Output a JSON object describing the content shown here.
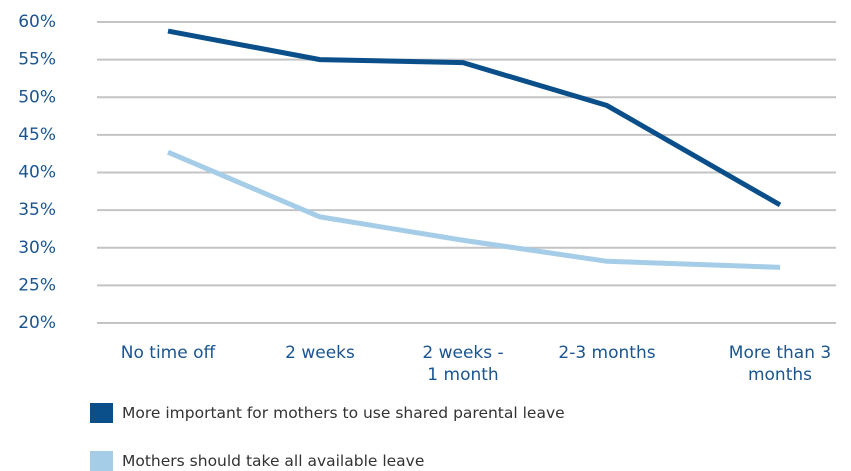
{
  "chart_data": {
    "type": "line",
    "categories": [
      "No time off",
      "2 weeks",
      "2 weeks - 1 month",
      "2-3 months",
      "More than 3 months"
    ],
    "series": [
      {
        "name": "More important for mothers to use shared parental leave",
        "color": "#0b4f8a",
        "values": [
          58.8,
          55,
          54.6,
          48.9,
          35.7
        ]
      },
      {
        "name": "Mothers should take all available leave",
        "color": "#a6cde8",
        "values": [
          42.7,
          34.1,
          31,
          28.2,
          27.4
        ]
      }
    ],
    "ylim": [
      20,
      60
    ],
    "yticks": [
      {
        "value": 20,
        "label": "20%"
      },
      {
        "value": 25,
        "label": "25%"
      },
      {
        "value": 30,
        "label": "30%"
      },
      {
        "value": 35,
        "label": "35%"
      },
      {
        "value": 40,
        "label": "40%"
      },
      {
        "value": 45,
        "label": "45%"
      },
      {
        "value": 50,
        "label": "50%"
      },
      {
        "value": 55,
        "label": "55%"
      },
      {
        "value": 60,
        "label": "60%"
      }
    ],
    "grid": true
  }
}
